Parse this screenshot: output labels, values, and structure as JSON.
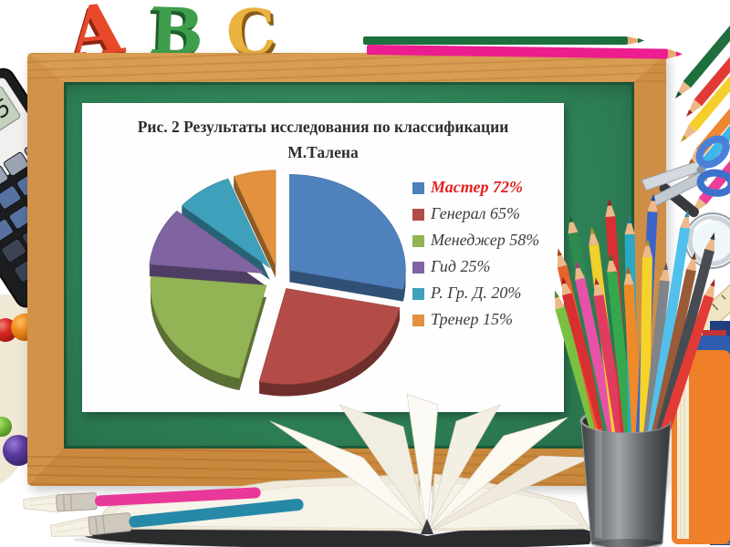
{
  "decorations": {
    "abc_letters": [
      "A",
      "B",
      "C"
    ],
    "calculator_display": "12345"
  },
  "figure": {
    "title_line1": "Рис. 2 Результаты исследования по классификации",
    "title_line2": "М.Талена"
  },
  "chart_data": {
    "type": "pie",
    "style": "3d-exploded",
    "title": "Рис. 2 Результаты исследования по классификации М.Талена",
    "labels": [
      "Мастер",
      "Генерал",
      "Менеджер",
      "Гид",
      "Р. Гр. Д.",
      "Тренер"
    ],
    "values": [
      72,
      65,
      58,
      25,
      20,
      15
    ],
    "unit": "%",
    "legend_entries": [
      "Мастер 72%",
      "Генерал 65%",
      "Менеджер 58%",
      "Гид 25%",
      "Р. Гр. Д. 20%",
      "Тренер 15%"
    ],
    "colors": [
      "#4f81bd",
      "#b34c47",
      "#93b455",
      "#8064a2",
      "#3fa0bb",
      "#e2913f"
    ],
    "legend_position": "right",
    "legend_highlight": {
      "index": 0,
      "color": "#e32020"
    }
  }
}
